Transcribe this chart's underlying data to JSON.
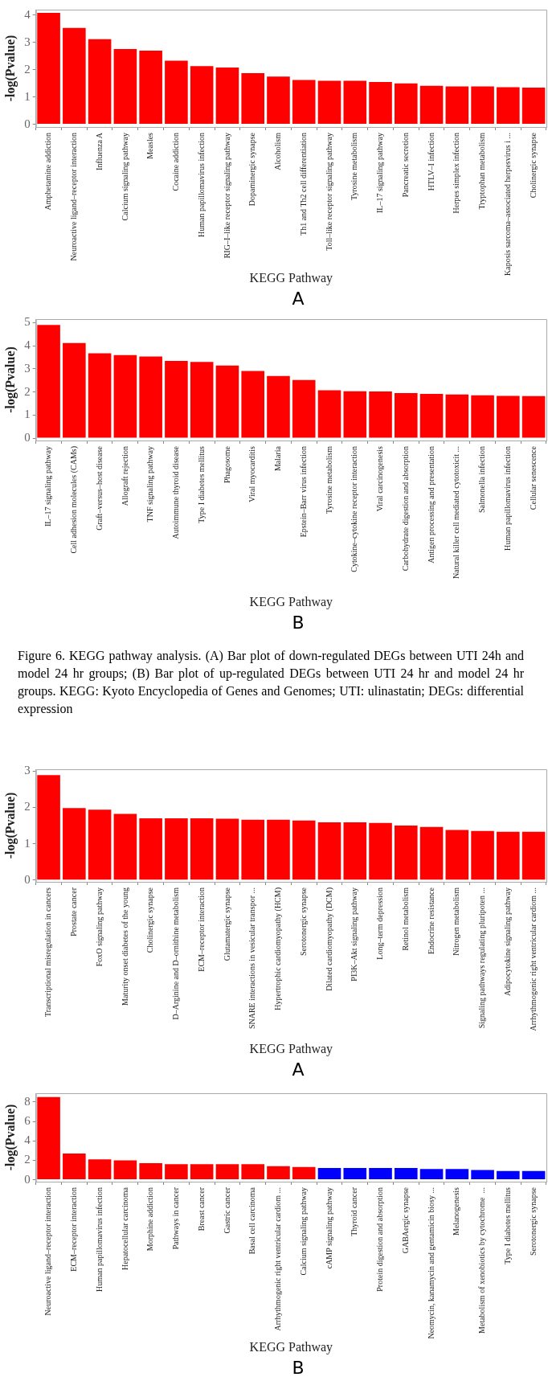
{
  "chart_data": [
    {
      "type": "bar",
      "ylabel": "-log(Pvalue)",
      "xlabel": "KEGG Pathway",
      "color": "#ff0000",
      "ylim": [
        -0.1,
        4.2
      ],
      "yticks": [
        0,
        1,
        2,
        3,
        4
      ],
      "categories": [
        "Amphetamine addiction",
        "Neuroactive ligand–receptor interaction",
        "Influenza A",
        "Calcium signaling pathway",
        "Measles",
        "Cocaine addiction",
        "Human papillomavirus infection",
        "RIG–I–like receptor signaling pathway",
        "Dopaminergic synapse",
        "Alcoholism",
        "Th1 and Th2 cell differentiation",
        "Toll–like receptor signaling pathway",
        "Tyrosine metabolism",
        "IL–17 signaling pathway",
        "Pancreatic secretion",
        "HTLV–I infection",
        "Herpes simplex infection",
        "Tryptophan metabolism",
        "Kaposis sarcoma–associated herpesvirus i ...",
        "Cholinergic synapse"
      ],
      "values": [
        4.08,
        3.53,
        3.12,
        2.76,
        2.7,
        2.33,
        2.13,
        2.08,
        1.87,
        1.75,
        1.62,
        1.59,
        1.59,
        1.55,
        1.5,
        1.41,
        1.39,
        1.39,
        1.36,
        1.34
      ],
      "annotations": [
        "A"
      ]
    },
    {
      "type": "bar",
      "ylabel": "-log(Pvalue)",
      "xlabel": "KEGG Pathway",
      "color": "#ff0000",
      "ylim": [
        -0.1,
        5.15
      ],
      "yticks": [
        0,
        1,
        2,
        3,
        4,
        5
      ],
      "categories": [
        "IL–17 signaling pathway",
        "Cell adhesion molecules (CAMs)",
        "Graft–versus–host disease",
        "Allograft rejection",
        "TNF signaling pathway",
        "Autoimmune thyroid disease",
        "Type I diabetes mellitus",
        "Phagosome",
        "Viral myocarditis",
        "Malaria",
        "Epstein–Barr virus infection",
        "Tyrosine metabolism",
        "Cytokine–cytokine receptor interaction",
        "Viral carcinogenesis",
        "Carbohydrate digestion and absorption",
        "Antigen processing and presentation",
        "Natural killer cell mediated cytotoxicit ...",
        "Salmonella infection",
        "Human papillomavirus infection",
        "Cellular senescence"
      ],
      "values": [
        4.9,
        4.12,
        3.67,
        3.59,
        3.53,
        3.34,
        3.3,
        3.14,
        2.91,
        2.69,
        2.52,
        2.07,
        2.03,
        2.02,
        1.95,
        1.92,
        1.89,
        1.86,
        1.83,
        1.82
      ],
      "annotations": [
        "B",
        "Figure 6. KEGG pathway analysis. (A) Bar plot of down-regulated DEGs between UTI 24h and model 24 hr groups; (B) Bar plot of up-regulated DEGs between UTI 24 hr and model 24 hr groups. KEGG: Kyoto Encyclopedia of Genes and Genomes; UTI: ulinastatin; DEGs: differential expression"
      ]
    },
    {
      "type": "bar",
      "ylabel": "-log(Pvalue)",
      "xlabel": "KEGG Pathway",
      "color": "#ff0000",
      "ylim": [
        -0.05,
        3.05
      ],
      "yticks": [
        0,
        1,
        2,
        3
      ],
      "categories": [
        "Transcriptional misregulation in cancers",
        "Prostate cancer",
        "FoxO signaling pathway",
        "Maturity onset diabetes of the young",
        "Cholinergic synapse",
        "D–Arginine and D–ornithine metabolism",
        "ECM–receptor interaction",
        "Glutamatergic synapse",
        "SNARE interactions in vesicular transpor ...",
        "Hypertrophic cardiomyopathy (HCM)",
        "Serotonergic synapse",
        "Dilated cardiomyopathy (DCM)",
        "PI3K–Akt signaling pathway",
        "Long–term depression",
        "Retinol metabolism",
        "Endocrine resistance",
        "Nitrogen metabolism",
        "Signaling pathways regulating pluripoten ...",
        "Adipocytokine signaling pathway",
        "Arrhythmogenic right ventricular cardiom ..."
      ],
      "values": [
        2.89,
        1.98,
        1.94,
        1.82,
        1.7,
        1.7,
        1.7,
        1.69,
        1.66,
        1.66,
        1.64,
        1.59,
        1.59,
        1.57,
        1.5,
        1.46,
        1.38,
        1.35,
        1.33,
        1.33
      ],
      "annotations": [
        "A"
      ]
    },
    {
      "type": "bar",
      "ylabel": "-log(Pvalue)",
      "xlabel": "KEGG Pathway",
      "ylim": [
        -0.2,
        8.9
      ],
      "yticks": [
        0,
        2,
        4,
        6,
        8
      ],
      "categories": [
        "Neuroactive ligand–receptor interaction",
        "ECM–receptor interaction",
        "Human papillomavirus infection",
        "Hepatocellular carcinoma",
        "Morphine addiction",
        "Pathways in cancer",
        "Breast cancer",
        "Gastric cancer",
        "Basal cell carcinoma",
        "Arrhythmogenic right ventricular cardiom ...",
        "Calcium signaling pathway",
        "cAMP signaling pathway",
        "Thyroid cancer",
        "Protein digestion and absorption",
        "GABAergic synapse",
        "Neomycin, kanamycin and gentamicin biosy ...",
        "Melanogenesis",
        "Metabolism of xenobiotics by cytochrome  ...",
        "Type I diabetes mellitus",
        "Serotonergic synapse"
      ],
      "values": [
        8.5,
        2.7,
        2.1,
        2.0,
        1.7,
        1.6,
        1.6,
        1.6,
        1.6,
        1.4,
        1.3,
        1.2,
        1.2,
        1.2,
        1.2,
        1.1,
        1.1,
        1.0,
        0.9,
        0.9
      ],
      "colors": [
        "#ff0000",
        "#ff0000",
        "#ff0000",
        "#ff0000",
        "#ff0000",
        "#ff0000",
        "#ff0000",
        "#ff0000",
        "#ff0000",
        "#ff0000",
        "#ff0000",
        "#0000ff",
        "#0000ff",
        "#0000ff",
        "#0000ff",
        "#0000ff",
        "#0000ff",
        "#0000ff",
        "#0000ff",
        "#0000ff"
      ],
      "annotations": [
        "B"
      ]
    }
  ]
}
